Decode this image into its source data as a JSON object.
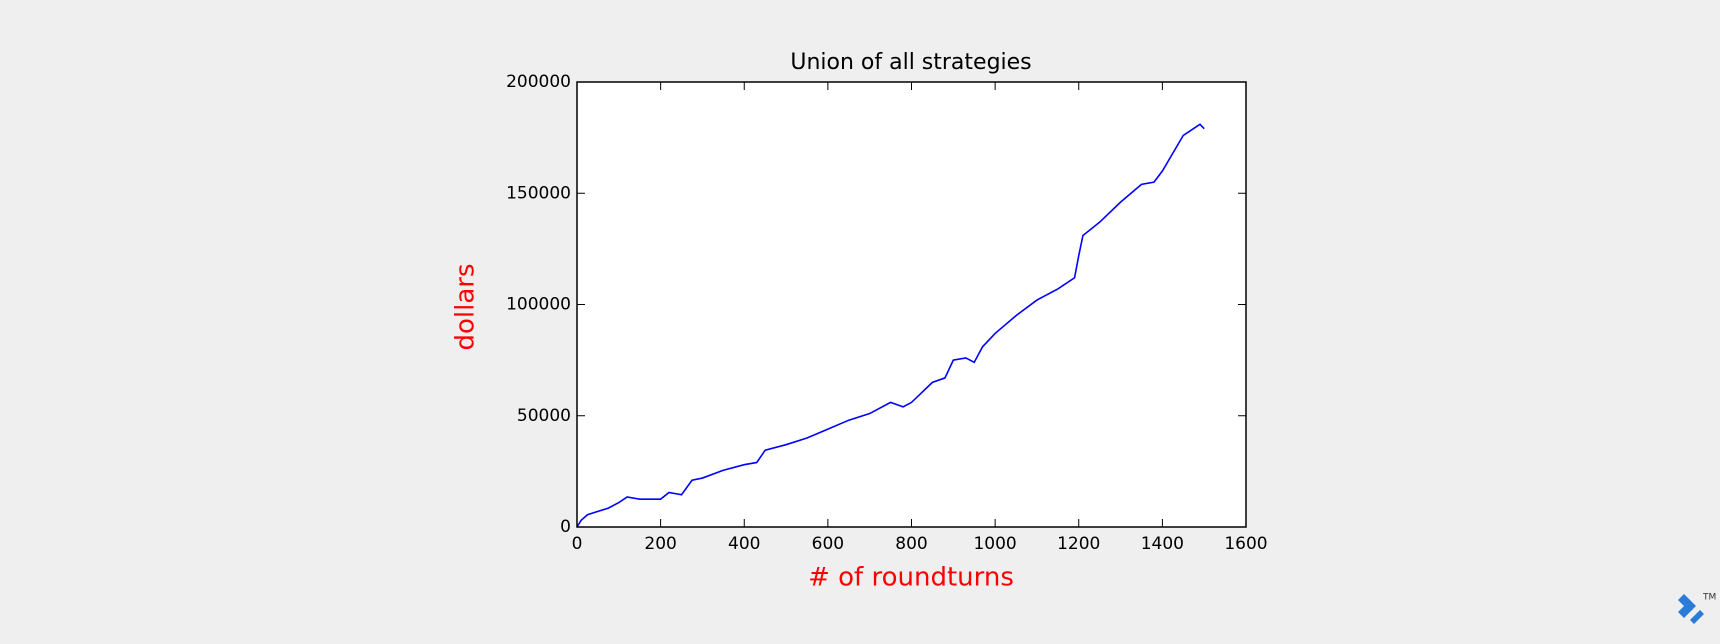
{
  "chart_data": {
    "type": "line",
    "title": "Union of all strategies",
    "x_label": "# of roundturns",
    "y_label": "dollars",
    "x": [
      0,
      10,
      25,
      50,
      75,
      100,
      120,
      150,
      200,
      220,
      250,
      275,
      300,
      350,
      400,
      430,
      450,
      500,
      550,
      600,
      650,
      700,
      750,
      780,
      800,
      850,
      880,
      900,
      930,
      950,
      970,
      1000,
      1050,
      1100,
      1150,
      1190,
      1200,
      1210,
      1250,
      1300,
      1350,
      1380,
      1400,
      1450,
      1490,
      1500
    ],
    "series": [
      {
        "name": "dollars",
        "color": "#0000ff",
        "values": [
          0,
          3000,
          5500,
          7000,
          8500,
          11000,
          13500,
          12500,
          12500,
          15500,
          14500,
          21000,
          22000,
          25500,
          28000,
          29000,
          34500,
          37000,
          40000,
          44000,
          48000,
          51000,
          56000,
          54000,
          56000,
          65000,
          67000,
          75000,
          76000,
          74000,
          81000,
          87000,
          95000,
          102000,
          107000,
          112000,
          122000,
          131000,
          137000,
          146000,
          154000,
          155000,
          160000,
          176000,
          181000,
          179000
        ]
      }
    ],
    "xlim": [
      0,
      1600
    ],
    "xticks": [
      0,
      200,
      400,
      600,
      800,
      1000,
      1200,
      1400,
      1600
    ],
    "ylim": [
      0,
      200000
    ],
    "yticks": [
      0,
      50000,
      100000,
      150000,
      200000
    ],
    "label_color": "#ff0000",
    "grid": false
  },
  "logo": {
    "trademark": "TM"
  }
}
